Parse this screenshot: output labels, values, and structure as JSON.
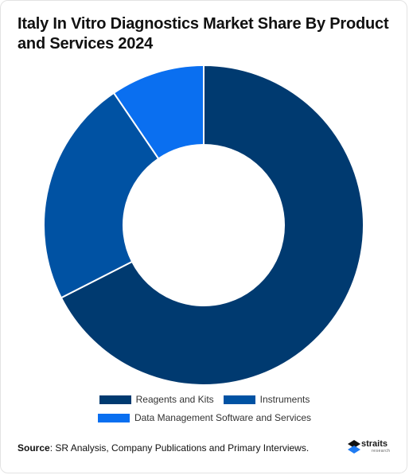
{
  "title": "Italy In Vitro Diagnostics Market Share By Product and Services 2024",
  "chart_data": {
    "type": "pie",
    "variant": "donut",
    "title": "Italy In Vitro Diagnostics Market Share By Product and Services 2024",
    "categories": [
      "Reagents and Kits",
      "Instruments",
      "Data Management Software and Services"
    ],
    "values": [
      67.5,
      23,
      9.5
    ],
    "colors": [
      "#003a70",
      "#0052a3",
      "#0a6ff0"
    ],
    "legend_position": "bottom"
  },
  "legend": [
    {
      "label": "Reagents and Kits",
      "color": "#003a70"
    },
    {
      "label": "Instruments",
      "color": "#0052a3"
    },
    {
      "label": "Data Management Software and Services",
      "color": "#0a6ff0"
    }
  ],
  "source": {
    "label": "Source",
    "text": ": SR Analysis, Company Publications and Primary Interviews."
  },
  "logo": {
    "word": "straits",
    "sub": "research"
  }
}
